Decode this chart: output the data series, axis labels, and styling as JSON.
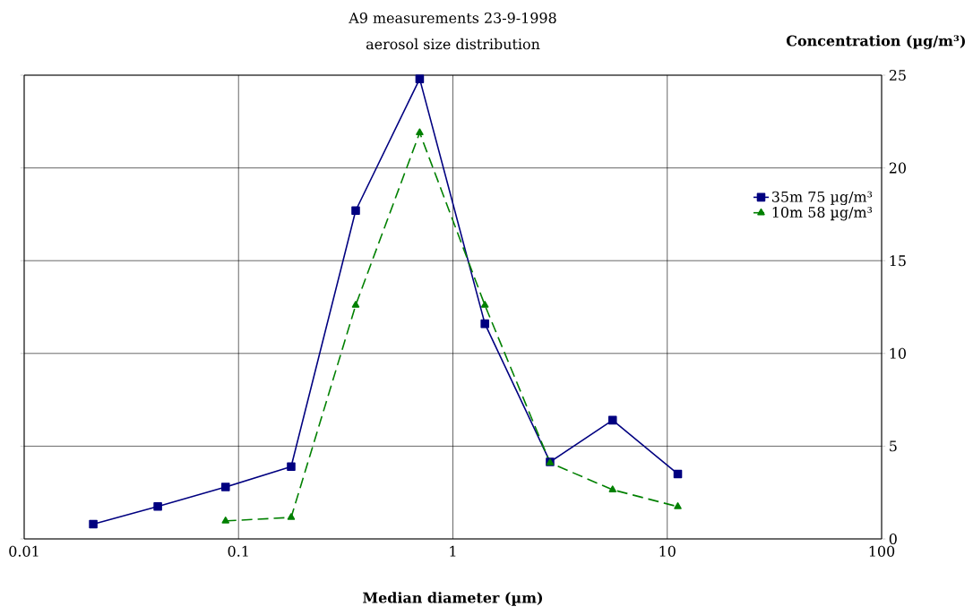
{
  "chart_data": {
    "type": "line",
    "title": "A9 measurements 23-9-1998",
    "subtitle": "aerosol size distribution",
    "xlabel": "Median diameter (µm)",
    "ylabel": "Concentration (µg/m³)",
    "log": "x",
    "xlim": [
      0.01,
      100
    ],
    "xticks": [
      0.01,
      0.1,
      1,
      10,
      100
    ],
    "ylim": [
      0,
      25
    ],
    "yticks": [
      0,
      5,
      10,
      15,
      20,
      25
    ],
    "grid": true,
    "legend": "right",
    "series": [
      {
        "name": "35m 75 µg/m³",
        "color": "#000080",
        "marker": "square",
        "line_style": "solid",
        "x": [
          0.021,
          0.042,
          0.087,
          0.176,
          0.352,
          0.7,
          1.41,
          2.84,
          5.56,
          11.2
        ],
        "values": [
          0.8,
          1.75,
          2.8,
          3.9,
          17.7,
          24.8,
          11.6,
          4.15,
          6.4,
          3.5
        ]
      },
      {
        "name": "10m 58 µg/m³",
        "color": "#008000",
        "marker": "triangle",
        "line_style": "dashed",
        "x": [
          0.087,
          0.176,
          0.352,
          0.7,
          1.41,
          2.84,
          5.56,
          11.2
        ],
        "values": [
          0.97,
          1.16,
          12.6,
          21.9,
          12.6,
          4.1,
          2.65,
          1.74
        ]
      }
    ]
  }
}
